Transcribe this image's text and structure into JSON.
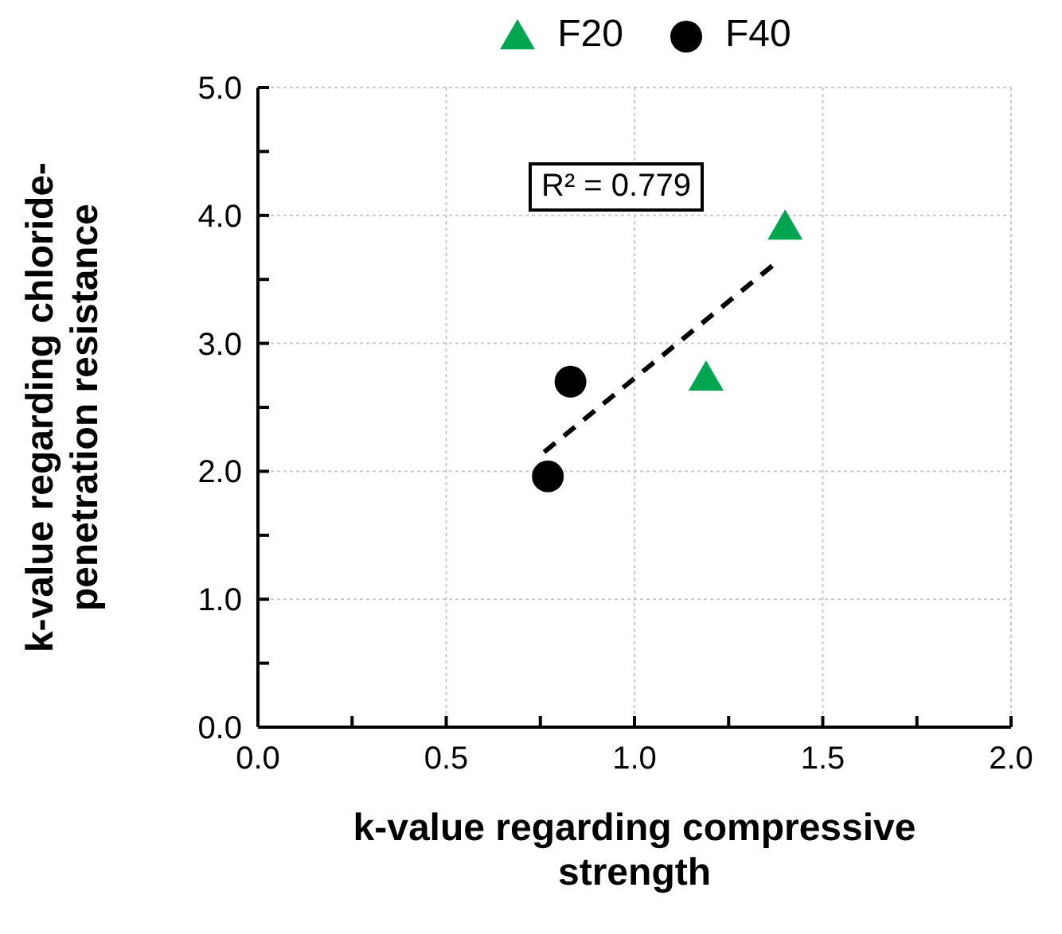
{
  "chart_data": {
    "type": "scatter",
    "xlabel": "k-value regarding compressive strength",
    "ylabel": "k-value regarding chloride-penetration resistance",
    "annotations": [
      "R² = 0.779"
    ],
    "series": [
      {
        "name": "F20",
        "color": "#00a550",
        "marker": "triangle",
        "x": [
          1.4,
          1.19
        ],
        "values": [
          3.91,
          2.73
        ]
      },
      {
        "name": "F40",
        "color": "#000000",
        "marker": "circle",
        "x": [
          0.83,
          0.77
        ],
        "values": [
          2.7,
          1.96
        ]
      },
      {
        "type": "line",
        "color": "#000000",
        "line_style": "dashed",
        "marker": "none",
        "x": [
          0.76,
          1.38
        ],
        "values": [
          2.15,
          3.64
        ]
      }
    ],
    "xlim": [
      0,
      2.0
    ],
    "xticks": [
      {
        "value": 0,
        "label": "0.0"
      },
      {
        "value": 0.25,
        "label": null
      },
      {
        "value": 0.5,
        "label": "0.5"
      },
      {
        "value": 0.75,
        "label": null
      },
      {
        "value": 1.0,
        "label": "1.0"
      },
      {
        "value": 1.25,
        "label": null
      },
      {
        "value": 1.5,
        "label": "1.5"
      },
      {
        "value": 1.75,
        "label": null
      },
      {
        "value": 2.0,
        "label": "2.0"
      }
    ],
    "ylim": [
      0,
      5.0
    ],
    "yticks": [
      {
        "value": 0,
        "label": "0.0"
      },
      {
        "value": 0.5,
        "label": null
      },
      {
        "value": 1.0,
        "label": "1.0"
      },
      {
        "value": 1.5,
        "label": null
      },
      {
        "value": 2.0,
        "label": "2.0"
      },
      {
        "value": 2.5,
        "label": null
      },
      {
        "value": 3.0,
        "label": "3.0"
      },
      {
        "value": 3.5,
        "label": null
      },
      {
        "value": 4.0,
        "label": "4.0"
      },
      {
        "value": 4.5,
        "label": null
      },
      {
        "value": 5.0,
        "label": "5.0"
      }
    ],
    "grid": true,
    "legend": "top"
  }
}
